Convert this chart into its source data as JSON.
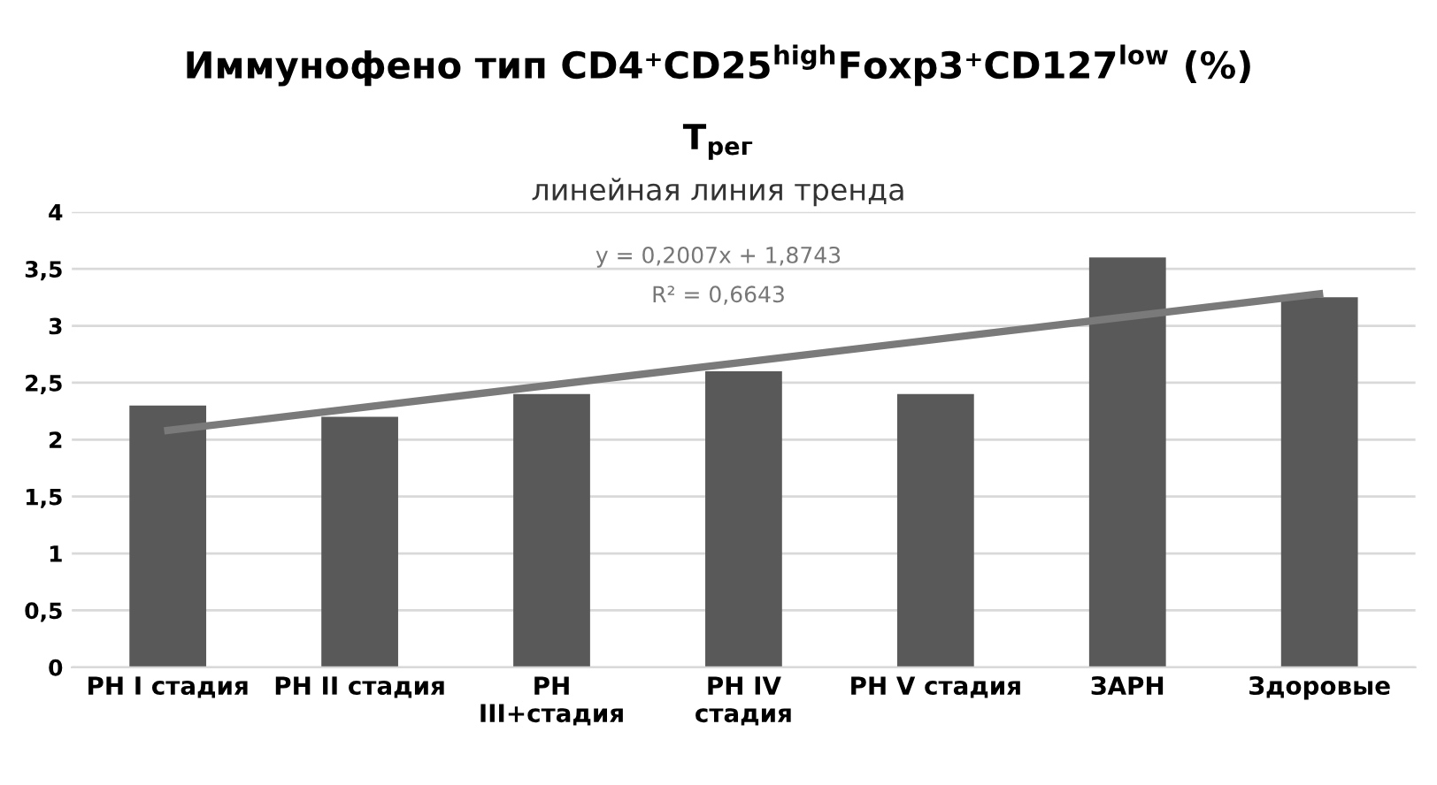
{
  "chart_data": {
    "type": "bar",
    "title": "Иммунофено тип CD4⁺CD25$^{high}$Foxp3⁺CD127$^{low}$ (%)",
    "subtitle": "T$_{рег}$",
    "categories": [
      "РН I стадия",
      "РН II стадия",
      "РН\nIII+стадия",
      "РН IV\nстадия",
      "РН V стадия",
      "ЗАРН",
      "Здоровые"
    ],
    "series": [
      {
        "color": "#595959",
        "values": [
          2.3,
          2.2,
          2.4,
          2.6,
          2.4,
          3.6,
          3.25
        ]
      },
      {
        "type": "line",
        "color": "#7a7a7a",
        "x": [
          "РН I стадия",
          "Здоровые"
        ],
        "values": [
          2.08,
          3.28
        ]
      }
    ],
    "annotations": [
      "линейная линия тренда",
      "y = 0,2007x + 1,8743",
      "R² = 0,6643"
    ],
    "ylim": [
      0,
      4
    ],
    "yticks": [
      0,
      {
        "value": 0.5,
        "label": "0,5"
      },
      1,
      {
        "value": 1.5,
        "label": "1,5"
      },
      2,
      {
        "value": 2.5,
        "label": "2,5"
      },
      3,
      {
        "value": 3.5,
        "label": "3,5"
      },
      4
    ],
    "grid": "y"
  }
}
